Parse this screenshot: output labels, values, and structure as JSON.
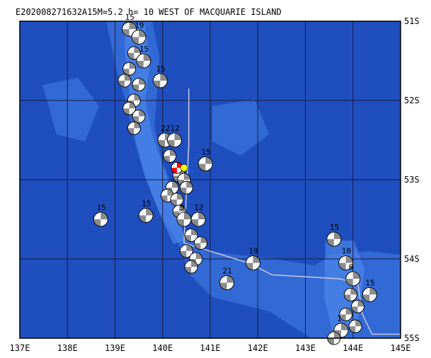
{
  "title": "E202008271632A15M=5.2 h= 10 WEST OF MACQUARIE ISLAND",
  "map": {
    "lon_range": [
      137,
      145
    ],
    "lat_range": [
      -55,
      -51
    ],
    "lon_labels": [
      "137E",
      "138E",
      "139E",
      "140E",
      "141E",
      "142E",
      "143E",
      "144E",
      "145E"
    ],
    "lat_labels": [
      "51S",
      "52S",
      "53S",
      "54S",
      "55S"
    ],
    "colors": {
      "ocean": "#1f4fbf",
      "shelf": "#3a72dc",
      "shallow": "#4b86ea",
      "grid": "#1a1a40",
      "frame": "#000000",
      "boundary": "#c8c8dc",
      "beachball_compression": "#8c8c8c",
      "beachball_dilatation": "#ffffff",
      "main_event_compression": "#ff0000",
      "epicenter_marker": "#ffff00"
    },
    "plate_boundary": [
      [
        140.55,
        -51.85
      ],
      [
        140.55,
        -52.55
      ],
      [
        140.45,
        -53.8
      ],
      [
        141.8,
        -54.05
      ],
      [
        142.3,
        -54.2
      ],
      [
        143.7,
        -54.25
      ],
      [
        144.1,
        -54.3
      ],
      [
        144.2,
        -54.7
      ],
      [
        144.4,
        -54.95
      ],
      [
        145,
        -54.95
      ]
    ],
    "main_event": {
      "lon": 140.3,
      "lat": -52.85,
      "label": ""
    },
    "epicenter": {
      "lon": 140.45,
      "lat": -52.85
    },
    "mechanisms": [
      {
        "lon": 139.3,
        "lat": -51.1,
        "label": "15"
      },
      {
        "lon": 139.5,
        "lat": -51.2,
        "label": "19"
      },
      {
        "lon": 139.4,
        "lat": -51.4,
        "label": ""
      },
      {
        "lon": 139.6,
        "lat": -51.5,
        "label": "15"
      },
      {
        "lon": 139.3,
        "lat": -51.6,
        "label": ""
      },
      {
        "lon": 139.5,
        "lat": -51.8,
        "label": ""
      },
      {
        "lon": 139.2,
        "lat": -51.75,
        "label": ""
      },
      {
        "lon": 139.95,
        "lat": -51.75,
        "label": "15"
      },
      {
        "lon": 139.4,
        "lat": -52.0,
        "label": ""
      },
      {
        "lon": 139.3,
        "lat": -52.1,
        "label": ""
      },
      {
        "lon": 139.5,
        "lat": -52.2,
        "label": ""
      },
      {
        "lon": 139.4,
        "lat": -52.35,
        "label": ""
      },
      {
        "lon": 140.05,
        "lat": -52.5,
        "label": "22"
      },
      {
        "lon": 140.25,
        "lat": -52.5,
        "label": "12"
      },
      {
        "lon": 140.15,
        "lat": -52.7,
        "label": ""
      },
      {
        "lon": 140.9,
        "lat": -52.8,
        "label": "15"
      },
      {
        "lon": 140.35,
        "lat": -52.95,
        "label": ""
      },
      {
        "lon": 140.2,
        "lat": -53.1,
        "label": ""
      },
      {
        "lon": 140.45,
        "lat": -53.0,
        "label": ""
      },
      {
        "lon": 140.1,
        "lat": -53.2,
        "label": ""
      },
      {
        "lon": 140.3,
        "lat": -53.25,
        "label": ""
      },
      {
        "lon": 140.5,
        "lat": -53.1,
        "label": ""
      },
      {
        "lon": 140.35,
        "lat": -53.4,
        "label": ""
      },
      {
        "lon": 138.7,
        "lat": -53.5,
        "label": "15"
      },
      {
        "lon": 139.65,
        "lat": -53.45,
        "label": "15"
      },
      {
        "lon": 140.45,
        "lat": -53.5,
        "label": "5"
      },
      {
        "lon": 140.75,
        "lat": -53.5,
        "label": "12"
      },
      {
        "lon": 140.6,
        "lat": -53.7,
        "label": ""
      },
      {
        "lon": 140.8,
        "lat": -53.8,
        "label": ""
      },
      {
        "lon": 140.5,
        "lat": -53.9,
        "label": ""
      },
      {
        "lon": 140.7,
        "lat": -54.0,
        "label": ""
      },
      {
        "lon": 140.6,
        "lat": -54.1,
        "label": ""
      },
      {
        "lon": 141.9,
        "lat": -54.05,
        "label": "19"
      },
      {
        "lon": 141.35,
        "lat": -54.3,
        "label": "21"
      },
      {
        "lon": 143.6,
        "lat": -53.75,
        "label": "15"
      },
      {
        "lon": 143.85,
        "lat": -54.05,
        "label": "10"
      },
      {
        "lon": 144.0,
        "lat": -54.25,
        "label": "6"
      },
      {
        "lon": 143.95,
        "lat": -54.45,
        "label": ""
      },
      {
        "lon": 144.35,
        "lat": -54.45,
        "label": "15"
      },
      {
        "lon": 144.1,
        "lat": -54.6,
        "label": ""
      },
      {
        "lon": 143.85,
        "lat": -54.7,
        "label": ""
      },
      {
        "lon": 144.05,
        "lat": -54.85,
        "label": ""
      },
      {
        "lon": 143.75,
        "lat": -54.9,
        "label": "1"
      },
      {
        "lon": 143.6,
        "lat": -55.0,
        "label": ""
      }
    ]
  }
}
